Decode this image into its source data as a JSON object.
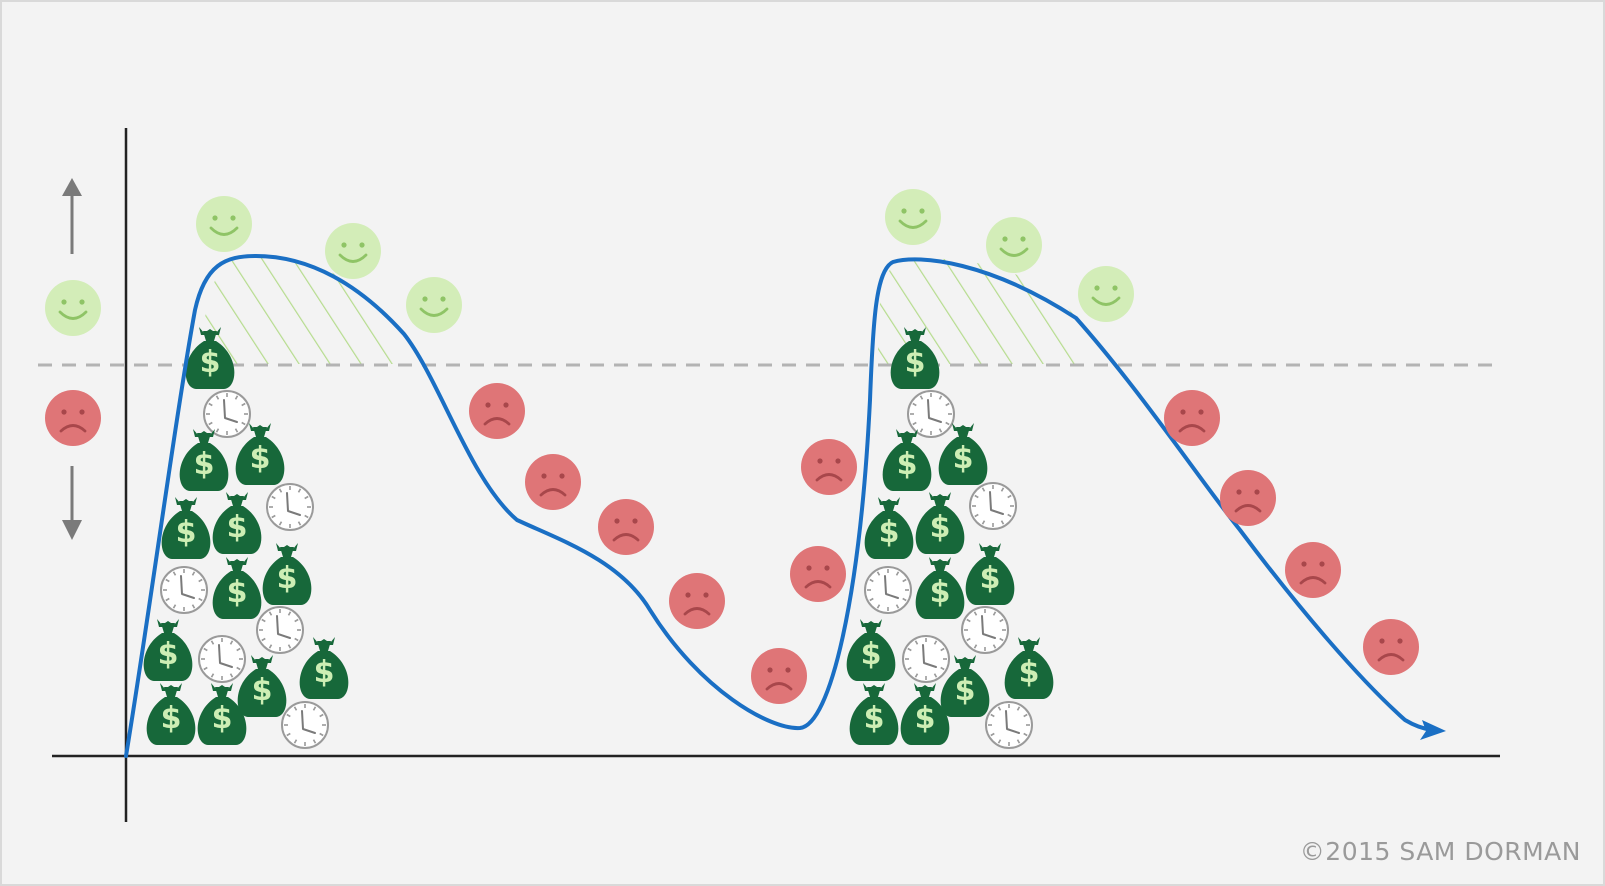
{
  "credit": "©2015 SAM DORMAN",
  "colors": {
    "background": "#f3f3f3",
    "frame": "#d9d9d9",
    "axis": "#222222",
    "curve": "#1a6fc4",
    "threshold": "#b3b3b3",
    "happy_fill": "#d3edb8",
    "happy_stroke": "#8fc466",
    "sad_fill": "#df7577",
    "sad_stroke": "#a8474b",
    "hatch": "#b6dc8e",
    "money_bag": "#17683a",
    "dollar": "#cdeeb4",
    "clock_face": "#ffffff",
    "clock_stroke": "#9a9a9a",
    "arrow_gray": "#7a7a7a"
  },
  "icons": {
    "happy": "smiley-face-icon",
    "sad": "frown-face-icon",
    "money": "money-bag-icon",
    "time": "clock-icon",
    "dollar_glyph": "$"
  },
  "legend": {
    "up_arrow": "arrow-up-icon",
    "down_arrow": "arrow-down-icon",
    "above_threshold": "happy",
    "below_threshold": "sad"
  }
}
